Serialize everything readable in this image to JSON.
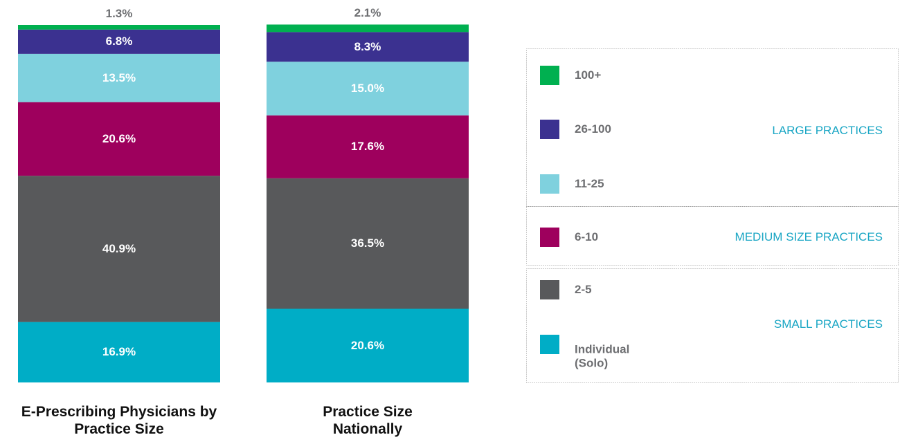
{
  "chart_data": {
    "type": "stacked_bar",
    "categories": [
      "E-Prescribing Physicians by Practice Size",
      "Practice Size Nationally"
    ],
    "ylim": [
      0,
      100
    ],
    "series": [
      {
        "name": "Individual (Solo)",
        "color": "#00adc6",
        "values": [
          16.9,
          20.6
        ],
        "value_labels": [
          "16.9%",
          "20.6%"
        ]
      },
      {
        "name": "2-5",
        "color": "#58595b",
        "values": [
          40.9,
          36.5
        ],
        "value_labels": [
          "40.9%",
          "36.5%"
        ]
      },
      {
        "name": "6-10",
        "color": "#9e005d",
        "values": [
          20.6,
          17.6
        ],
        "value_labels": [
          "20.6%",
          "17.6%"
        ]
      },
      {
        "name": "11-25",
        "color": "#7fd1de",
        "values": [
          13.5,
          15.0
        ],
        "value_labels": [
          "13.5%",
          "15.0%"
        ]
      },
      {
        "name": "26-100",
        "color": "#3b3190",
        "values": [
          6.8,
          8.3
        ],
        "value_labels": [
          "6.8%",
          "8.3%"
        ]
      },
      {
        "name": "100+",
        "color": "#00b050",
        "values": [
          1.3,
          2.1
        ],
        "value_labels": [
          "1.3%",
          "2.1%"
        ]
      }
    ],
    "legend_groups": [
      "LARGE PRACTICES",
      "MEDIUM SIZE PRACTICES",
      "SMALL PRACTICES"
    ]
  }
}
